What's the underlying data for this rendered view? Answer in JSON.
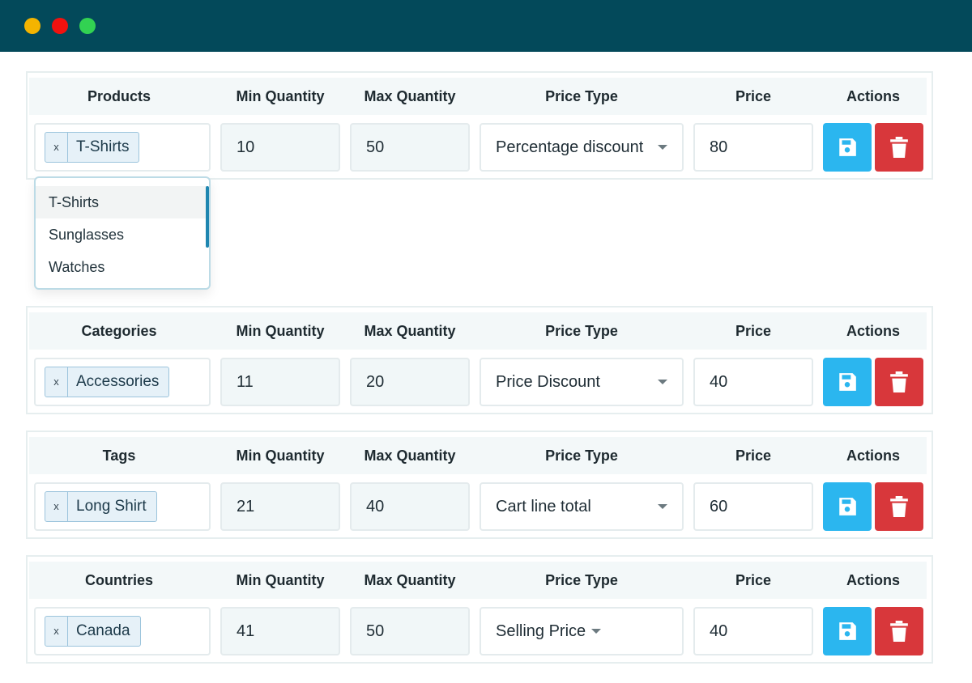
{
  "headers": {
    "min_qty": "Min Quantity",
    "max_qty": "Max Quantity",
    "price_type": "Price Type",
    "price": "Price",
    "actions": "Actions"
  },
  "chip_remove_symbol": "x",
  "rules": [
    {
      "scope_label": "Products",
      "chip": "T-Shirts",
      "min_qty": "10",
      "max_qty": "50",
      "price_type": "Percentage discount",
      "price": "80"
    },
    {
      "scope_label": "Categories",
      "chip": "Accessories",
      "min_qty": "11",
      "max_qty": "20",
      "price_type": "Price Discount",
      "price": "40"
    },
    {
      "scope_label": "Tags",
      "chip": "Long Shirt",
      "min_qty": "21",
      "max_qty": "40",
      "price_type": "Cart line total",
      "price": "60"
    },
    {
      "scope_label": "Countries",
      "chip": "Canada",
      "min_qty": "41",
      "max_qty": "50",
      "price_type": "Selling Price",
      "price": "40"
    }
  ],
  "dropdown": {
    "options": [
      "T-Shirts",
      "Sunglasses",
      "Watches"
    ],
    "highlighted": "T-Shirts"
  },
  "colors": {
    "titlebar": "#03495a",
    "save": "#2bb6ef",
    "delete": "#d8373b"
  },
  "icons": {
    "save": "floppy-disk-icon",
    "delete": "trash-icon",
    "dropdown": "caret-down-icon"
  }
}
